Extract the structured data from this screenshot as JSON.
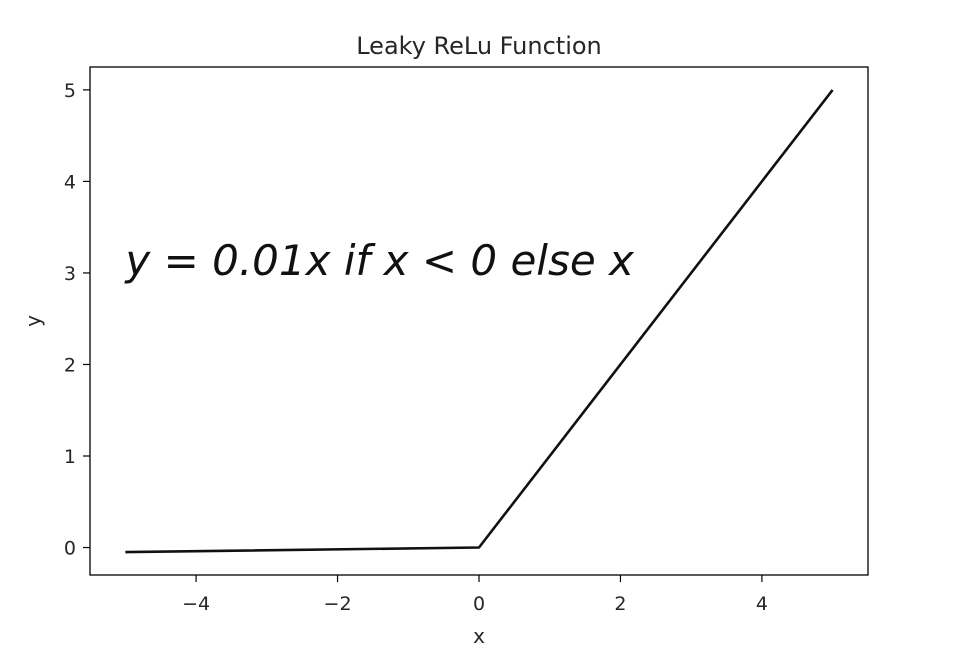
{
  "chart_data": {
    "type": "line",
    "title": "Leaky ReLu Function",
    "xlabel": "x",
    "ylabel": "y",
    "xlim": [
      -5.5,
      5.5
    ],
    "ylim": [
      -0.3,
      5.25
    ],
    "xticks": [
      -4,
      -2,
      0,
      2,
      4
    ],
    "xtick_labels": [
      "−4",
      "−2",
      "0",
      "2",
      "4"
    ],
    "yticks": [
      0,
      1,
      2,
      3,
      4,
      5
    ],
    "ytick_labels": [
      "0",
      "1",
      "2",
      "3",
      "4",
      "5"
    ],
    "grid": false,
    "annotation": "y = 0.01x if x < 0 else x",
    "annotation_at": [
      -5,
      3
    ],
    "series": [
      {
        "x": [
          -5,
          0,
          5
        ],
        "y": [
          -0.05,
          0,
          5
        ],
        "color": "#111111"
      }
    ]
  }
}
